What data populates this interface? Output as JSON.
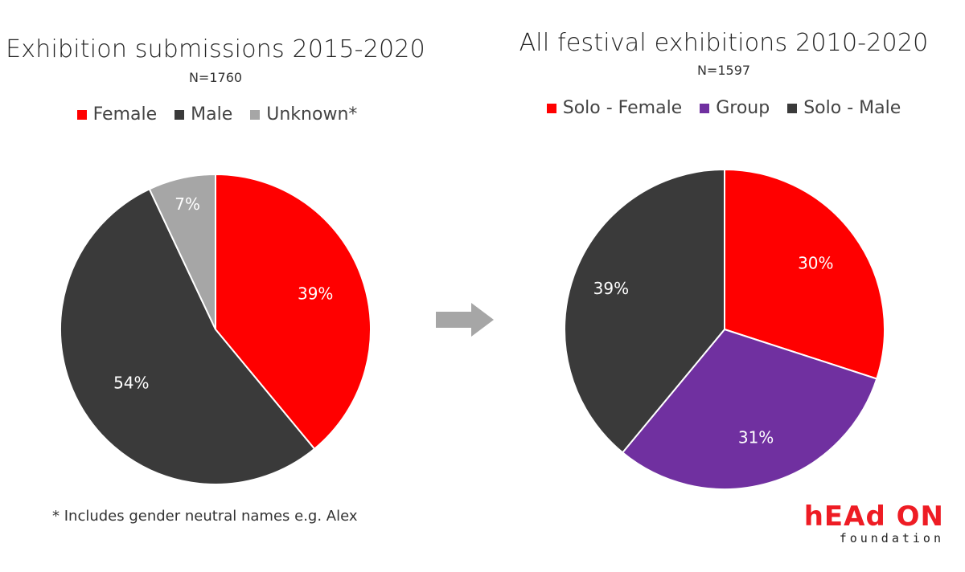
{
  "chart_data": [
    {
      "type": "pie",
      "title": "Exhibition submissions 2015-2020",
      "subtitle": "N=1760",
      "slices": [
        {
          "label": "Female",
          "value": 39,
          "display": "39%",
          "color": "#ff0000"
        },
        {
          "label": "Male",
          "value": 54,
          "display": "54%",
          "color": "#3a3a3a"
        },
        {
          "label": "Unknown*",
          "value": 7,
          "display": "7%",
          "color": "#a6a6a6"
        }
      ],
      "legend_placement": "top"
    },
    {
      "type": "pie",
      "title": "All festival exhibitions 2010-2020",
      "subtitle": "N=1597",
      "slices": [
        {
          "label": "Solo - Female",
          "value": 30,
          "display": "30%",
          "color": "#ff0000"
        },
        {
          "label": "Group",
          "value": 31,
          "display": "31%",
          "color": "#7030a0"
        },
        {
          "label": "Solo - Male",
          "value": 39,
          "display": "39%",
          "color": "#3a3a3a"
        }
      ],
      "legend_placement": "top"
    }
  ],
  "footnote": "* Includes gender neutral names e.g. Alex",
  "logo": {
    "main": "hEAd ON",
    "sub": "foundation"
  },
  "arrow_icon": "right-arrow-icon",
  "arrow_color": "#a6a6a6"
}
